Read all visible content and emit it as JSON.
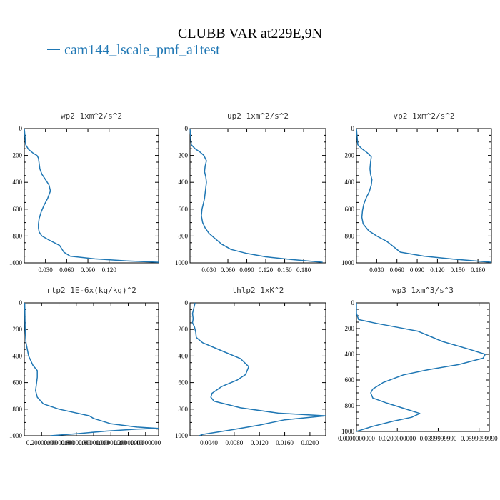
{
  "figure": {
    "title": "CLUBB VAR at229E,9N",
    "legend_label": "cam144_lscale_pmf_a1test",
    "series_color": "#1f77b4"
  },
  "chart_data": [
    {
      "type": "line",
      "title": "wp2  1xm^2/s^2",
      "xlim": [
        0,
        0.19
      ],
      "ylim": [
        1000,
        0
      ],
      "xticks": [
        0.03,
        0.06,
        0.09,
        0.12
      ],
      "xtick_labels": [
        "0.030",
        "0.060",
        "0.090",
        "0.120"
      ],
      "yticks": [
        0,
        200,
        400,
        600,
        800,
        1000
      ],
      "ytick_labels": [
        "0",
        "200",
        "400",
        "600",
        "800",
        "1000"
      ],
      "series": [
        {
          "name": "cam144_lscale_pmf_a1test",
          "x": [
            0.0,
            0.002,
            0.006,
            0.013,
            0.018,
            0.02,
            0.021,
            0.022,
            0.025,
            0.03,
            0.035,
            0.037,
            0.033,
            0.028,
            0.024,
            0.021,
            0.02,
            0.02,
            0.021,
            0.025,
            0.035,
            0.05,
            0.056,
            0.065,
            0.1,
            0.145,
            0.19
          ],
          "y": [
            0,
            120,
            155,
            185,
            200,
            220,
            260,
            300,
            340,
            380,
            420,
            465,
            520,
            570,
            620,
            670,
            710,
            740,
            770,
            800,
            830,
            870,
            920,
            950,
            970,
            985,
            995
          ]
        }
      ]
    },
    {
      "type": "line",
      "title": "up2  1xm^2/s^2",
      "xlim": [
        0,
        0.215
      ],
      "ylim": [
        1000,
        0
      ],
      "xticks": [
        0.03,
        0.06,
        0.09,
        0.12,
        0.15,
        0.18
      ],
      "xtick_labels": [
        "0.030",
        "0.060",
        "0.090",
        "0.120",
        "0.150",
        "0.180"
      ],
      "yticks": [
        0,
        200,
        400,
        600,
        800,
        1000
      ],
      "ytick_labels": [
        "0",
        "200",
        "400",
        "600",
        "800",
        "1000"
      ],
      "series": [
        {
          "name": "cam144_lscale_pmf_a1test",
          "x": [
            0.0,
            0.002,
            0.008,
            0.016,
            0.022,
            0.026,
            0.024,
            0.023,
            0.025,
            0.026,
            0.025,
            0.024,
            0.023,
            0.021,
            0.019,
            0.018,
            0.02,
            0.024,
            0.03,
            0.04,
            0.05,
            0.065,
            0.09,
            0.12,
            0.16,
            0.21
          ],
          "y": [
            0,
            120,
            150,
            175,
            200,
            240,
            280,
            320,
            360,
            400,
            440,
            480,
            520,
            560,
            600,
            650,
            700,
            740,
            780,
            820,
            860,
            900,
            930,
            955,
            975,
            995
          ]
        }
      ]
    },
    {
      "type": "line",
      "title": "vp2  1xm^2/s^2",
      "xlim": [
        0,
        0.2
      ],
      "ylim": [
        1000,
        0
      ],
      "xticks": [
        0.03,
        0.06,
        0.09,
        0.12,
        0.15,
        0.18
      ],
      "xtick_labels": [
        "0.030",
        "0.060",
        "0.090",
        "0.120",
        "0.150",
        "0.180"
      ],
      "yticks": [
        0,
        200,
        400,
        600,
        800,
        1000
      ],
      "ytick_labels": [
        "0",
        "200",
        "400",
        "600",
        "800",
        "1000"
      ],
      "series": [
        {
          "name": "cam144_lscale_pmf_a1test",
          "x": [
            0.0,
            0.002,
            0.008,
            0.016,
            0.022,
            0.021,
            0.02,
            0.021,
            0.023,
            0.022,
            0.019,
            0.015,
            0.011,
            0.009,
            0.008,
            0.01,
            0.018,
            0.03,
            0.045,
            0.055,
            0.065,
            0.1,
            0.15,
            0.2
          ],
          "y": [
            0,
            120,
            150,
            180,
            210,
            250,
            300,
            340,
            380,
            420,
            470,
            510,
            560,
            610,
            660,
            710,
            760,
            800,
            840,
            880,
            920,
            950,
            975,
            995
          ]
        }
      ]
    },
    {
      "type": "line",
      "title": "rtp2  1E-6x(kg/kg)^2",
      "xlim": [
        0,
        1.55
      ],
      "ylim": [
        1000,
        0
      ],
      "xticks": [
        0.2,
        0.4,
        0.6,
        0.8,
        1.0,
        1.2,
        1.4
      ],
      "xtick_labels": [
        "0.20000000",
        "0.40000000",
        "0.60000000",
        "0.80000000",
        "1.00000000",
        "1.20000000",
        "1.40000000"
      ],
      "yticks": [
        0,
        200,
        400,
        600,
        800,
        1000
      ],
      "ytick_labels": [
        "0",
        "200",
        "400",
        "600",
        "800",
        "1000"
      ],
      "series": [
        {
          "name": "cam144_lscale_pmf_a1test",
          "x": [
            0.005,
            0.01,
            0.02,
            0.05,
            0.1,
            0.15,
            0.15,
            0.14,
            0.13,
            0.15,
            0.22,
            0.4,
            0.75,
            0.8,
            1.0,
            1.3,
            1.55,
            1.3,
            0.95,
            0.6,
            0.3
          ],
          "y": [
            0,
            200,
            300,
            400,
            470,
            510,
            560,
            610,
            660,
            710,
            760,
            800,
            850,
            870,
            910,
            935,
            945,
            950,
            965,
            985,
            1000
          ]
        }
      ]
    },
    {
      "type": "line",
      "title": "thlp2  1xK^2",
      "xlim": [
        0.001,
        0.0225
      ],
      "ylim": [
        1000,
        0
      ],
      "xticks": [
        0.004,
        0.008,
        0.012,
        0.016,
        0.02
      ],
      "xtick_labels": [
        "0.0040",
        "0.0080",
        "0.0120",
        "0.0160",
        "0.0200"
      ],
      "yticks": [
        0,
        200,
        400,
        600,
        800,
        1000
      ],
      "ytick_labels": [
        "0",
        "200",
        "400",
        "600",
        "800",
        "1000"
      ],
      "series": [
        {
          "name": "cam144_lscale_pmf_a1test",
          "x": [
            0.0018,
            0.0016,
            0.0014,
            0.0015,
            0.0014,
            0.0017,
            0.0019,
            0.002,
            0.003,
            0.006,
            0.009,
            0.0103,
            0.0098,
            0.0085,
            0.006,
            0.0045,
            0.0043,
            0.0048,
            0.009,
            0.015,
            0.0225,
            0.016,
            0.012,
            0.007,
            0.003,
            0.0025
          ],
          "y": [
            0,
            40,
            80,
            120,
            150,
            180,
            220,
            260,
            300,
            360,
            420,
            480,
            540,
            580,
            630,
            680,
            710,
            740,
            790,
            830,
            850,
            880,
            920,
            960,
            990,
            1000
          ]
        }
      ]
    },
    {
      "type": "line",
      "title": "wp3  1xm^3/s^3",
      "xlim": [
        0,
        0.065
      ],
      "ylim": [
        1000,
        0
      ],
      "xticks": [
        0.0,
        0.02,
        0.04,
        0.06
      ],
      "xtick_labels": [
        "0.0000000000",
        "0.0200000000",
        "0.0399999990",
        "0.0599999990"
      ],
      "yticks": [
        0,
        200,
        400,
        600,
        800,
        1000
      ],
      "ytick_labels": [
        "0",
        "200",
        "400",
        "600",
        "800",
        "1000"
      ],
      "series": [
        {
          "name": "cam144_lscale_pmf_a1test",
          "x": [
            0.0,
            0.0,
            0.001,
            0.01,
            0.02,
            0.03,
            0.042,
            0.055,
            0.063,
            0.062,
            0.05,
            0.035,
            0.023,
            0.013,
            0.008,
            0.007,
            0.008,
            0.015,
            0.025,
            0.031,
            0.027,
            0.018,
            0.008,
            0.002,
            0.0
          ],
          "y": [
            0,
            80,
            130,
            160,
            190,
            220,
            300,
            360,
            400,
            430,
            480,
            520,
            560,
            620,
            670,
            700,
            740,
            780,
            830,
            860,
            890,
            920,
            960,
            990,
            1000
          ]
        }
      ]
    }
  ]
}
